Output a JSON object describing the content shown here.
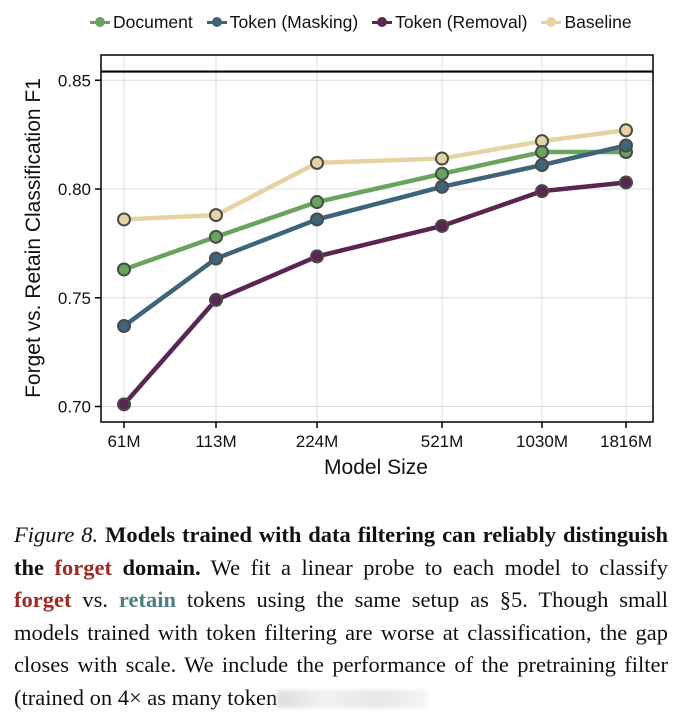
{
  "chart_data": {
    "type": "line",
    "title": "",
    "xlabel": "Model Size",
    "ylabel": "Forget vs. Retain Classification F1",
    "categories": [
      "61M",
      "113M",
      "224M",
      "521M",
      "1030M",
      "1816M"
    ],
    "ylim": [
      0.695,
      0.862
    ],
    "yticks": [
      0.7,
      0.75,
      0.8,
      0.85
    ],
    "ytick_labels": [
      "0.70",
      "0.75",
      "0.80",
      "0.85"
    ],
    "grid": true,
    "legend_position": "top",
    "reference_line": {
      "label": "Pretraining filter",
      "value": 0.854,
      "color": "#000000"
    },
    "series": [
      {
        "name": "Document",
        "color": "#6aa35e",
        "values": [
          0.763,
          0.778,
          0.794,
          0.807,
          0.817,
          0.817
        ]
      },
      {
        "name": "Token (Masking)",
        "color": "#3d6478",
        "values": [
          0.737,
          0.768,
          0.786,
          0.801,
          0.811,
          0.82
        ]
      },
      {
        "name": "Token (Removal)",
        "color": "#5a2550",
        "values": [
          0.701,
          0.749,
          0.769,
          0.783,
          0.799,
          0.803
        ]
      },
      {
        "name": "Baseline",
        "color": "#e6d3a3",
        "values": [
          0.786,
          0.788,
          0.812,
          0.814,
          0.822,
          0.827
        ]
      }
    ]
  },
  "caption": {
    "figure_label": "Figure 8.",
    "bold_part1": "Models trained with data filtering can reliably distinguish the",
    "bold_forget": "forget",
    "bold_part2": "domain.",
    "text1": "We fit a linear probe to each model to classify",
    "forget_word": "forget",
    "text2": "vs.",
    "retain_word": "retain",
    "text3": "tokens using the same setup as §5. Though small models trained with token filtering are worse at classification, the gap closes with scale. We include the performance of the pretraining filter (trained on 4× as many token"
  }
}
